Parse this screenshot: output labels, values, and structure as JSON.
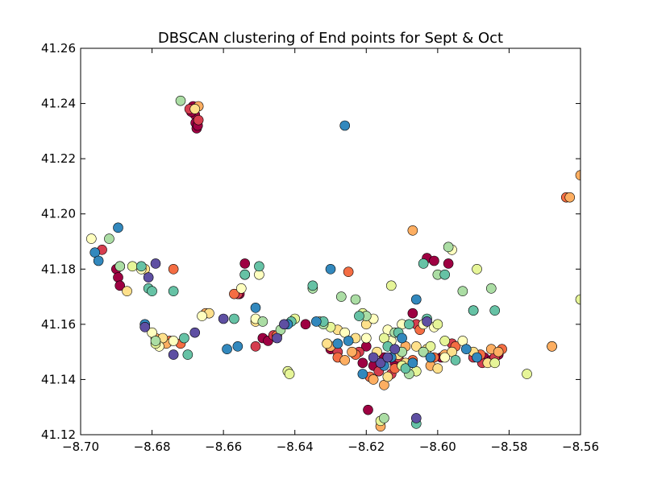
{
  "chart_data": {
    "type": "scatter",
    "title": "DBSCAN clustering of End points for Sept & Oct",
    "xlabel": "",
    "ylabel": "",
    "xlim": [
      -8.7,
      -8.56
    ],
    "ylim": [
      41.12,
      41.26
    ],
    "xticks": [
      -8.7,
      -8.68,
      -8.66,
      -8.64,
      -8.62,
      -8.6,
      -8.58,
      -8.56
    ],
    "xtick_labels": [
      "−8.70",
      "−8.68",
      "−8.66",
      "−8.64",
      "−8.62",
      "−8.60",
      "−8.58",
      "−8.56"
    ],
    "yticks": [
      41.12,
      41.14,
      41.16,
      41.18,
      41.2,
      41.22,
      41.24,
      41.26
    ],
    "ytick_labels": [
      "41.12",
      "41.14",
      "41.16",
      "41.18",
      "41.20",
      "41.22",
      "41.24",
      "41.26"
    ],
    "grid": false,
    "legend": "none",
    "palette": [
      "#9e0142",
      "#d53e4f",
      "#f46d43",
      "#fdae61",
      "#fee08b",
      "#ffffbf",
      "#e6f598",
      "#abdda4",
      "#66c2a5",
      "#3288bd",
      "#5e4fa2"
    ],
    "series": [
      {
        "color": "#9e0142",
        "points": [
          [
            -8.6685,
            41.239
          ],
          [
            -8.668,
            41.236
          ],
          [
            -8.6678,
            41.233
          ],
          [
            -8.6675,
            41.231
          ],
          [
            -8.669,
            41.237
          ],
          [
            -8.6672,
            41.232
          ],
          [
            -8.69,
            41.18
          ],
          [
            -8.6895,
            41.177
          ],
          [
            -8.689,
            41.174
          ],
          [
            -8.654,
            41.182
          ],
          [
            -8.6555,
            41.171
          ],
          [
            -8.649,
            41.155
          ],
          [
            -8.6475,
            41.154
          ],
          [
            -8.637,
            41.16
          ],
          [
            -8.62,
            41.152
          ],
          [
            -8.621,
            41.146
          ],
          [
            -8.6195,
            41.129
          ],
          [
            -8.618,
            41.145
          ],
          [
            -8.615,
            41.148
          ],
          [
            -8.607,
            41.164
          ],
          [
            -8.603,
            41.184
          ],
          [
            -8.601,
            41.183
          ],
          [
            -8.597,
            41.182
          ],
          [
            -8.587,
            41.148
          ],
          [
            -8.585,
            41.147
          ],
          [
            -8.583,
            41.149
          ],
          [
            -8.599,
            41.148
          ],
          [
            -8.61,
            41.15
          ],
          [
            -8.612,
            41.146
          ],
          [
            -8.63,
            41.151
          ]
        ]
      },
      {
        "color": "#d53e4f",
        "points": [
          [
            -8.6695,
            41.238
          ],
          [
            -8.667,
            41.234
          ],
          [
            -8.689,
            41.181
          ],
          [
            -8.694,
            41.187
          ],
          [
            -8.656,
            41.171
          ],
          [
            -8.651,
            41.152
          ],
          [
            -8.646,
            41.156
          ],
          [
            -8.622,
            41.15
          ],
          [
            -8.6165,
            41.143
          ],
          [
            -8.613,
            41.142
          ],
          [
            -8.606,
            41.16
          ],
          [
            -8.604,
            41.15
          ],
          [
            -8.596,
            41.153
          ],
          [
            -8.59,
            41.148
          ],
          [
            -8.5875,
            41.146
          ],
          [
            -8.584,
            41.148
          ],
          [
            -8.628,
            41.15
          ],
          [
            -8.611,
            41.148
          ]
        ]
      },
      {
        "color": "#f46d43",
        "points": [
          [
            -8.674,
            41.18
          ],
          [
            -8.675,
            41.154
          ],
          [
            -8.672,
            41.153
          ],
          [
            -8.657,
            41.171
          ],
          [
            -8.645,
            41.156
          ],
          [
            -8.625,
            41.179
          ],
          [
            -8.628,
            41.148
          ],
          [
            -8.619,
            41.141
          ],
          [
            -8.612,
            41.144
          ],
          [
            -8.607,
            41.147
          ],
          [
            -8.601,
            41.148
          ],
          [
            -8.595,
            41.152
          ],
          [
            -8.588,
            41.149
          ],
          [
            -8.582,
            41.151
          ],
          [
            -8.568,
            41.152
          ],
          [
            -8.564,
            41.206
          ],
          [
            -8.623,
            41.149
          ],
          [
            -8.605,
            41.158
          ]
        ]
      },
      {
        "color": "#fdae61",
        "points": [
          [
            -8.667,
            41.239
          ],
          [
            -8.679,
            41.155
          ],
          [
            -8.676,
            41.153
          ],
          [
            -8.665,
            41.164
          ],
          [
            -8.63,
            41.152
          ],
          [
            -8.624,
            41.15
          ],
          [
            -8.618,
            41.14
          ],
          [
            -8.616,
            41.123
          ],
          [
            -8.607,
            41.194
          ],
          [
            -8.604,
            41.15
          ],
          [
            -8.602,
            41.145
          ],
          [
            -8.598,
            41.149
          ],
          [
            -8.585,
            41.151
          ],
          [
            -8.583,
            41.15
          ],
          [
            -8.568,
            41.152
          ],
          [
            -8.563,
            41.206
          ],
          [
            -8.56,
            41.214
          ],
          [
            -8.615,
            41.138
          ],
          [
            -8.609,
            41.152
          ],
          [
            -8.626,
            41.147
          ]
        ]
      },
      {
        "color": "#fee08b",
        "points": [
          [
            -8.668,
            41.238
          ],
          [
            -8.687,
            41.172
          ],
          [
            -8.682,
            41.18
          ],
          [
            -8.677,
            41.155
          ],
          [
            -8.664,
            41.164
          ],
          [
            -8.651,
            41.161
          ],
          [
            -8.631,
            41.153
          ],
          [
            -8.628,
            41.158
          ],
          [
            -8.62,
            41.16
          ],
          [
            -8.617,
            41.15
          ],
          [
            -8.614,
            41.141
          ],
          [
            -8.606,
            41.152
          ],
          [
            -8.603,
            41.151
          ],
          [
            -8.6,
            41.144
          ],
          [
            -8.596,
            41.15
          ],
          [
            -8.59,
            41.15
          ],
          [
            -8.586,
            41.146
          ],
          [
            -8.623,
            41.155
          ],
          [
            -8.611,
            41.149
          ],
          [
            -8.609,
            41.146
          ]
        ]
      },
      {
        "color": "#ffffbf",
        "points": [
          [
            -8.697,
            41.191
          ],
          [
            -8.683,
            41.18
          ],
          [
            -8.68,
            41.157
          ],
          [
            -8.678,
            41.152
          ],
          [
            -8.674,
            41.154
          ],
          [
            -8.666,
            41.163
          ],
          [
            -8.655,
            41.173
          ],
          [
            -8.651,
            41.162
          ],
          [
            -8.65,
            41.178
          ],
          [
            -8.633,
            41.161
          ],
          [
            -8.626,
            41.157
          ],
          [
            -8.618,
            41.162
          ],
          [
            -8.613,
            41.154
          ],
          [
            -8.61,
            41.16
          ],
          [
            -8.604,
            41.16
          ],
          [
            -8.601,
            41.159
          ],
          [
            -8.598,
            41.148
          ],
          [
            -8.596,
            41.187
          ],
          [
            -8.593,
            41.154
          ],
          [
            -8.614,
            41.158
          ],
          [
            -8.62,
            41.155
          ]
        ]
      },
      {
        "color": "#e6f598",
        "points": [
          [
            -8.6855,
            41.181
          ],
          [
            -8.679,
            41.153
          ],
          [
            -8.642,
            41.143
          ],
          [
            -8.6415,
            41.142
          ],
          [
            -8.64,
            41.162
          ],
          [
            -8.63,
            41.159
          ],
          [
            -8.621,
            41.164
          ],
          [
            -8.616,
            41.125
          ],
          [
            -8.613,
            41.174
          ],
          [
            -8.61,
            41.145
          ],
          [
            -8.606,
            41.143
          ],
          [
            -8.602,
            41.152
          ],
          [
            -8.6,
            41.16
          ],
          [
            -8.598,
            41.154
          ],
          [
            -8.589,
            41.18
          ],
          [
            -8.584,
            41.146
          ],
          [
            -8.56,
            41.169
          ],
          [
            -8.575,
            41.142
          ],
          [
            -8.615,
            41.155
          ]
        ]
      },
      {
        "color": "#abdda4",
        "points": [
          [
            -8.692,
            41.191
          ],
          [
            -8.689,
            41.181
          ],
          [
            -8.679,
            41.154
          ],
          [
            -8.672,
            41.241
          ],
          [
            -8.654,
            41.178
          ],
          [
            -8.649,
            41.161
          ],
          [
            -8.644,
            41.158
          ],
          [
            -8.635,
            41.173
          ],
          [
            -8.627,
            41.17
          ],
          [
            -8.623,
            41.169
          ],
          [
            -8.62,
            41.163
          ],
          [
            -8.612,
            41.157
          ],
          [
            -8.608,
            41.142
          ],
          [
            -8.604,
            41.15
          ],
          [
            -8.6,
            41.178
          ],
          [
            -8.597,
            41.188
          ],
          [
            -8.593,
            41.172
          ],
          [
            -8.59,
            41.165
          ],
          [
            -8.585,
            41.173
          ],
          [
            -8.615,
            41.126
          ],
          [
            -8.61,
            41.15
          ],
          [
            -8.632,
            41.16
          ]
        ]
      },
      {
        "color": "#66c2a5",
        "points": [
          [
            -8.683,
            41.181
          ],
          [
            -8.681,
            41.173
          ],
          [
            -8.68,
            41.172
          ],
          [
            -8.674,
            41.172
          ],
          [
            -8.671,
            41.155
          ],
          [
            -8.67,
            41.149
          ],
          [
            -8.657,
            41.162
          ],
          [
            -8.654,
            41.178
          ],
          [
            -8.65,
            41.181
          ],
          [
            -8.641,
            41.161
          ],
          [
            -8.635,
            41.174
          ],
          [
            -8.632,
            41.161
          ],
          [
            -8.622,
            41.163
          ],
          [
            -8.611,
            41.157
          ],
          [
            -8.608,
            41.16
          ],
          [
            -8.604,
            41.182
          ],
          [
            -8.603,
            41.162
          ],
          [
            -8.598,
            41.178
          ],
          [
            -8.595,
            41.147
          ],
          [
            -8.59,
            41.165
          ],
          [
            -8.584,
            41.165
          ],
          [
            -8.614,
            41.152
          ],
          [
            -8.609,
            41.144
          ],
          [
            -8.606,
            41.124
          ]
        ]
      },
      {
        "color": "#3288bd",
        "points": [
          [
            -8.696,
            41.186
          ],
          [
            -8.695,
            41.183
          ],
          [
            -8.6895,
            41.195
          ],
          [
            -8.682,
            41.16
          ],
          [
            -8.659,
            41.151
          ],
          [
            -8.656,
            41.152
          ],
          [
            -8.651,
            41.166
          ],
          [
            -8.642,
            41.16
          ],
          [
            -8.634,
            41.161
          ],
          [
            -8.63,
            41.18
          ],
          [
            -8.626,
            41.232
          ],
          [
            -8.625,
            41.154
          ],
          [
            -8.621,
            41.142
          ],
          [
            -8.615,
            41.145
          ],
          [
            -8.613,
            41.148
          ],
          [
            -8.61,
            41.155
          ],
          [
            -8.606,
            41.169
          ],
          [
            -8.602,
            41.148
          ],
          [
            -8.592,
            41.151
          ],
          [
            -8.589,
            41.148
          ],
          [
            -8.628,
            41.153
          ],
          [
            -8.607,
            41.146
          ]
        ]
      },
      {
        "color": "#5e4fa2",
        "points": [
          [
            -8.681,
            41.177
          ],
          [
            -8.679,
            41.182
          ],
          [
            -8.682,
            41.159
          ],
          [
            -8.674,
            41.149
          ],
          [
            -8.668,
            41.157
          ],
          [
            -8.66,
            41.162
          ],
          [
            -8.645,
            41.155
          ],
          [
            -8.643,
            41.16
          ],
          [
            -8.616,
            41.146
          ],
          [
            -8.614,
            41.148
          ],
          [
            -8.606,
            41.126
          ],
          [
            -8.603,
            41.161
          ],
          [
            -8.618,
            41.148
          ],
          [
            -8.612,
            41.151
          ]
        ]
      }
    ]
  }
}
